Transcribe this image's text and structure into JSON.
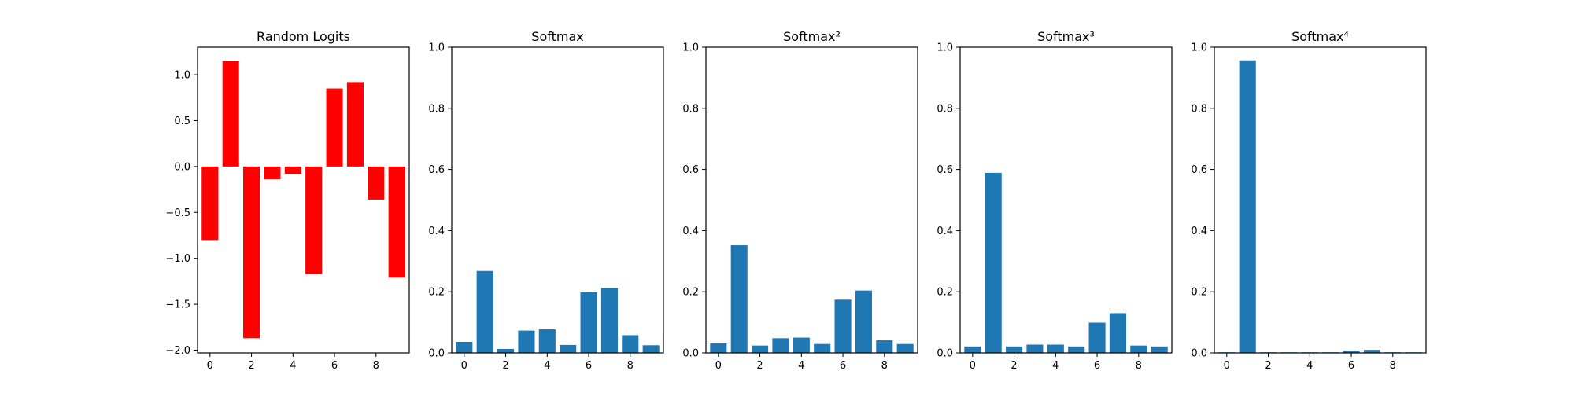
{
  "chart_data": [
    {
      "type": "bar",
      "title": "Random Logits",
      "xlabel": "",
      "ylabel": "",
      "categories": [
        0,
        1,
        2,
        3,
        4,
        5,
        6,
        7,
        8,
        9
      ],
      "values": [
        -0.8,
        1.15,
        -1.87,
        -0.14,
        -0.08,
        -1.17,
        0.85,
        0.92,
        -0.36,
        -1.21
      ],
      "ylim": [
        -2.03,
        1.3
      ],
      "xlim": [
        -0.6,
        9.6
      ],
      "xticks": [
        "0",
        "2",
        "4",
        "6",
        "8"
      ],
      "yticks": [
        "−2.0",
        "−1.5",
        "−1.0",
        "−0.5",
        "0.0",
        "0.5",
        "1.0"
      ],
      "ytick_values": [
        -2.0,
        -1.5,
        -1.0,
        -0.5,
        0.0,
        0.5,
        1.0
      ],
      "color": "#ff0000",
      "grid": false
    },
    {
      "type": "bar",
      "title": "Softmax",
      "xlabel": "",
      "ylabel": "",
      "categories": [
        0,
        1,
        2,
        3,
        4,
        5,
        6,
        7,
        8,
        9
      ],
      "values": [
        0.036,
        0.268,
        0.013,
        0.073,
        0.077,
        0.026,
        0.198,
        0.212,
        0.058,
        0.025
      ],
      "ylim": [
        0,
        1
      ],
      "xlim": [
        -0.6,
        9.6
      ],
      "xticks": [
        "0",
        "2",
        "4",
        "6",
        "8"
      ],
      "yticks": [
        "0.0",
        "0.2",
        "0.4",
        "0.6",
        "0.8",
        "1.0"
      ],
      "ytick_values": [
        0,
        0.2,
        0.4,
        0.6,
        0.8,
        1.0
      ],
      "color": "#1f77b4",
      "grid": false
    },
    {
      "type": "bar",
      "title": "Softmax²",
      "xlabel": "",
      "ylabel": "",
      "categories": [
        0,
        1,
        2,
        3,
        4,
        5,
        6,
        7,
        8,
        9
      ],
      "values": [
        0.031,
        0.352,
        0.024,
        0.048,
        0.05,
        0.029,
        0.174,
        0.204,
        0.041,
        0.029
      ],
      "ylim": [
        0,
        1
      ],
      "xlim": [
        -0.6,
        9.6
      ],
      "xticks": [
        "0",
        "2",
        "4",
        "6",
        "8"
      ],
      "yticks": [
        "0.0",
        "0.2",
        "0.4",
        "0.6",
        "0.8",
        "1.0"
      ],
      "ytick_values": [
        0,
        0.2,
        0.4,
        0.6,
        0.8,
        1.0
      ],
      "color": "#1f77b4",
      "grid": false
    },
    {
      "type": "bar",
      "title": "Softmax³",
      "xlabel": "",
      "ylabel": "",
      "categories": [
        0,
        1,
        2,
        3,
        4,
        5,
        6,
        7,
        8,
        9
      ],
      "values": [
        0.021,
        0.589,
        0.021,
        0.027,
        0.027,
        0.021,
        0.099,
        0.13,
        0.024,
        0.021
      ],
      "ylim": [
        0,
        1
      ],
      "xlim": [
        -0.6,
        9.6
      ],
      "xticks": [
        "0",
        "2",
        "4",
        "6",
        "8"
      ],
      "yticks": [
        "0.0",
        "0.2",
        "0.4",
        "0.6",
        "0.8",
        "1.0"
      ],
      "ytick_values": [
        0,
        0.2,
        0.4,
        0.6,
        0.8,
        1.0
      ],
      "color": "#1f77b4",
      "grid": false
    },
    {
      "type": "bar",
      "title": "Softmax⁴",
      "xlabel": "",
      "ylabel": "",
      "categories": [
        0,
        1,
        2,
        3,
        4,
        5,
        6,
        7,
        8,
        9
      ],
      "values": [
        0.002,
        0.957,
        0.002,
        0.002,
        0.002,
        0.002,
        0.007,
        0.01,
        0.002,
        0.002
      ],
      "ylim": [
        0,
        1
      ],
      "xlim": [
        -0.6,
        9.6
      ],
      "xticks": [
        "0",
        "2",
        "4",
        "6",
        "8"
      ],
      "yticks": [
        "0.0",
        "0.2",
        "0.4",
        "0.6",
        "0.8",
        "1.0"
      ],
      "ytick_values": [
        0,
        0.2,
        0.4,
        0.6,
        0.8,
        1.0
      ],
      "color": "#1f77b4",
      "grid": false
    }
  ]
}
